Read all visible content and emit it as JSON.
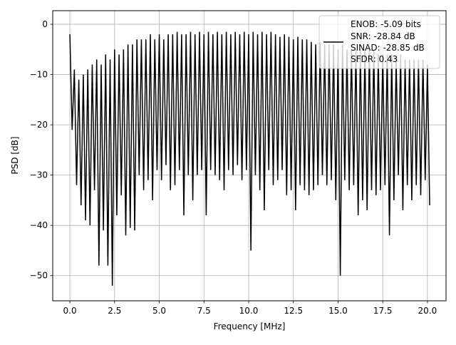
{
  "chart_data": {
    "type": "line",
    "title": "",
    "xlabel": "Frequency [MHz]",
    "ylabel": "PSD [dB]",
    "xlim": [
      -0.96,
      21.04
    ],
    "ylim": [
      -55.0,
      2.7
    ],
    "grid": true,
    "xticks": [
      0,
      2.5,
      5,
      7.5,
      10,
      12.5,
      15,
      17.5,
      20
    ],
    "xtick_labels": [
      "0.0",
      "2.5",
      "5.0",
      "7.5",
      "10.0",
      "12.5",
      "15.0",
      "17.5",
      "20.0"
    ],
    "yticks": [
      0,
      -10,
      -20,
      -30,
      -40,
      -50
    ],
    "ytick_labels": [
      "0",
      "−10",
      "−20",
      "−30",
      "−40",
      "−50"
    ],
    "series": [
      {
        "name": "PSD",
        "color": "#000000",
        "x_start": 0,
        "x_step": 0.125,
        "y": [
          -2,
          -21,
          -9,
          -32,
          -11,
          -36,
          -10,
          -39,
          -9,
          -40,
          -8,
          -33,
          -7,
          -48,
          -8,
          -41,
          -6,
          -48,
          -7,
          -52,
          -5,
          -38,
          -6,
          -34,
          -5,
          -42,
          -4,
          -40.5,
          -4,
          -41,
          -3,
          -30,
          -3,
          -33,
          -3,
          -31,
          -2,
          -35,
          -3,
          -29,
          -2,
          -31,
          -3,
          -28,
          -2,
          -33,
          -2,
          -32,
          -1.5,
          -29,
          -2,
          -38,
          -2,
          -30,
          -1.5,
          -35,
          -2,
          -30,
          -1.5,
          -29,
          -2,
          -38,
          -1.5,
          -29,
          -2,
          -30,
          -1.5,
          -31,
          -2,
          -33,
          -1.5,
          -29,
          -2,
          -30,
          -1.5,
          -28,
          -2,
          -31,
          -1.5,
          -29,
          -2,
          -45,
          -1.5,
          -30,
          -2,
          -33,
          -1.5,
          -37,
          -2,
          -29,
          -1.5,
          -32,
          -2,
          -31,
          -2.5,
          -29,
          -2,
          -34,
          -2.5,
          -33,
          -3,
          -37,
          -2.5,
          -32,
          -3,
          -33,
          -3,
          -34,
          -3.5,
          -33,
          -4,
          -32,
          -3.5,
          -30,
          -4,
          -32,
          -4,
          -31,
          -4,
          -35,
          -5,
          -50,
          -4,
          -31,
          -5,
          -33,
          -5,
          -32,
          -5,
          -38,
          -5,
          -35,
          -5,
          -37,
          -5,
          -33,
          -5,
          -34,
          -6,
          -33,
          -6,
          -32,
          -6,
          -42,
          -6,
          -35,
          -7,
          -30,
          -6,
          -37,
          -7,
          -32,
          -7,
          -35,
          -7,
          -32,
          -7,
          -34,
          -7,
          -31,
          -8,
          -36
        ]
      }
    ],
    "legend": {
      "placement": "top-right",
      "entries": [
        "ENOB: -5.09 bits",
        "SNR: -28.84 dB",
        "SINAD: -28.85 dB",
        "SFDR: 0.43"
      ]
    }
  }
}
